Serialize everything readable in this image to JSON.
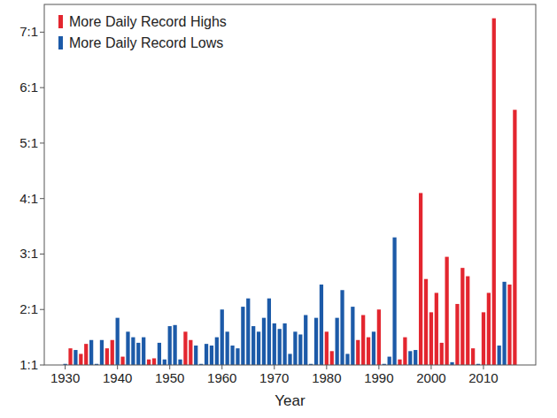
{
  "chart_data": {
    "type": "bar",
    "xlabel": "Year",
    "x": [
      1930,
      1931,
      1932,
      1933,
      1934,
      1935,
      1936,
      1937,
      1938,
      1939,
      1940,
      1941,
      1942,
      1943,
      1944,
      1945,
      1946,
      1947,
      1948,
      1949,
      1950,
      1951,
      1952,
      1953,
      1954,
      1955,
      1956,
      1957,
      1958,
      1959,
      1960,
      1961,
      1962,
      1963,
      1964,
      1965,
      1966,
      1967,
      1968,
      1969,
      1970,
      1971,
      1972,
      1973,
      1974,
      1975,
      1976,
      1977,
      1978,
      1979,
      1980,
      1981,
      1982,
      1983,
      1984,
      1985,
      1986,
      1987,
      1988,
      1989,
      1990,
      1991,
      1992,
      1993,
      1994,
      1995,
      1996,
      1997,
      1998,
      1999,
      2000,
      2001,
      2002,
      2003,
      2004,
      2005,
      2006,
      2007,
      2008,
      2009,
      2010,
      2011,
      2012,
      2013,
      2014,
      2015,
      2016
    ],
    "series": [
      {
        "name": "More Daily Record Highs",
        "color": "#e3262f",
        "values": [
          null,
          1.3,
          null,
          1.2,
          1.38,
          null,
          null,
          null,
          1.3,
          1.45,
          null,
          1.15,
          null,
          null,
          null,
          null,
          1.1,
          1.12,
          null,
          null,
          null,
          null,
          null,
          1.6,
          1.45,
          null,
          null,
          null,
          null,
          null,
          null,
          null,
          null,
          null,
          null,
          null,
          null,
          null,
          null,
          null,
          null,
          null,
          null,
          null,
          null,
          null,
          null,
          null,
          null,
          null,
          1.6,
          1.25,
          null,
          null,
          null,
          null,
          1.45,
          1.9,
          1.5,
          null,
          2.0,
          null,
          null,
          null,
          1.1,
          1.5,
          null,
          null,
          4.1,
          2.55,
          1.95,
          2.3,
          1.4,
          2.95,
          null,
          2.1,
          2.75,
          2.6,
          1.3,
          null,
          1.95,
          2.3,
          7.25,
          null,
          null,
          2.45,
          5.6
        ]
      },
      {
        "name": "More Daily Record Lows",
        "color": "#1c5aa8",
        "values": [
          1.02,
          null,
          1.27,
          null,
          null,
          1.45,
          1.02,
          1.45,
          null,
          null,
          1.85,
          null,
          1.6,
          1.5,
          1.4,
          1.5,
          null,
          null,
          1.4,
          1.1,
          1.7,
          1.72,
          1.1,
          null,
          null,
          1.35,
          1.02,
          1.38,
          1.35,
          1.5,
          2.0,
          1.6,
          1.35,
          1.3,
          2.05,
          2.2,
          1.7,
          1.6,
          1.85,
          2.2,
          1.75,
          1.65,
          1.75,
          1.2,
          1.6,
          1.55,
          1.9,
          1.02,
          1.85,
          2.45,
          null,
          null,
          1.85,
          2.35,
          1.2,
          2.05,
          null,
          null,
          null,
          1.6,
          null,
          1.02,
          1.15,
          3.3,
          null,
          null,
          1.25,
          1.27,
          null,
          null,
          null,
          null,
          null,
          null,
          1.05,
          null,
          null,
          null,
          null,
          1.02,
          null,
          null,
          null,
          1.35,
          2.5,
          null,
          null
        ]
      }
    ],
    "xlim": [
      1926,
      2020
    ],
    "xticks": [
      1930,
      1940,
      1950,
      1960,
      1970,
      1980,
      1990,
      2000,
      2010
    ],
    "ylim": [
      1,
      7.5
    ],
    "yticks": [
      {
        "value": 1,
        "label": "1:1"
      },
      {
        "value": 2,
        "label": "2:1"
      },
      {
        "value": 3,
        "label": "3:1"
      },
      {
        "value": 4,
        "label": "4:1"
      },
      {
        "value": 5,
        "label": "5:1"
      },
      {
        "value": 6,
        "label": "6:1"
      },
      {
        "value": 7,
        "label": "7:1"
      }
    ],
    "grid": false,
    "legend": "upper left"
  }
}
